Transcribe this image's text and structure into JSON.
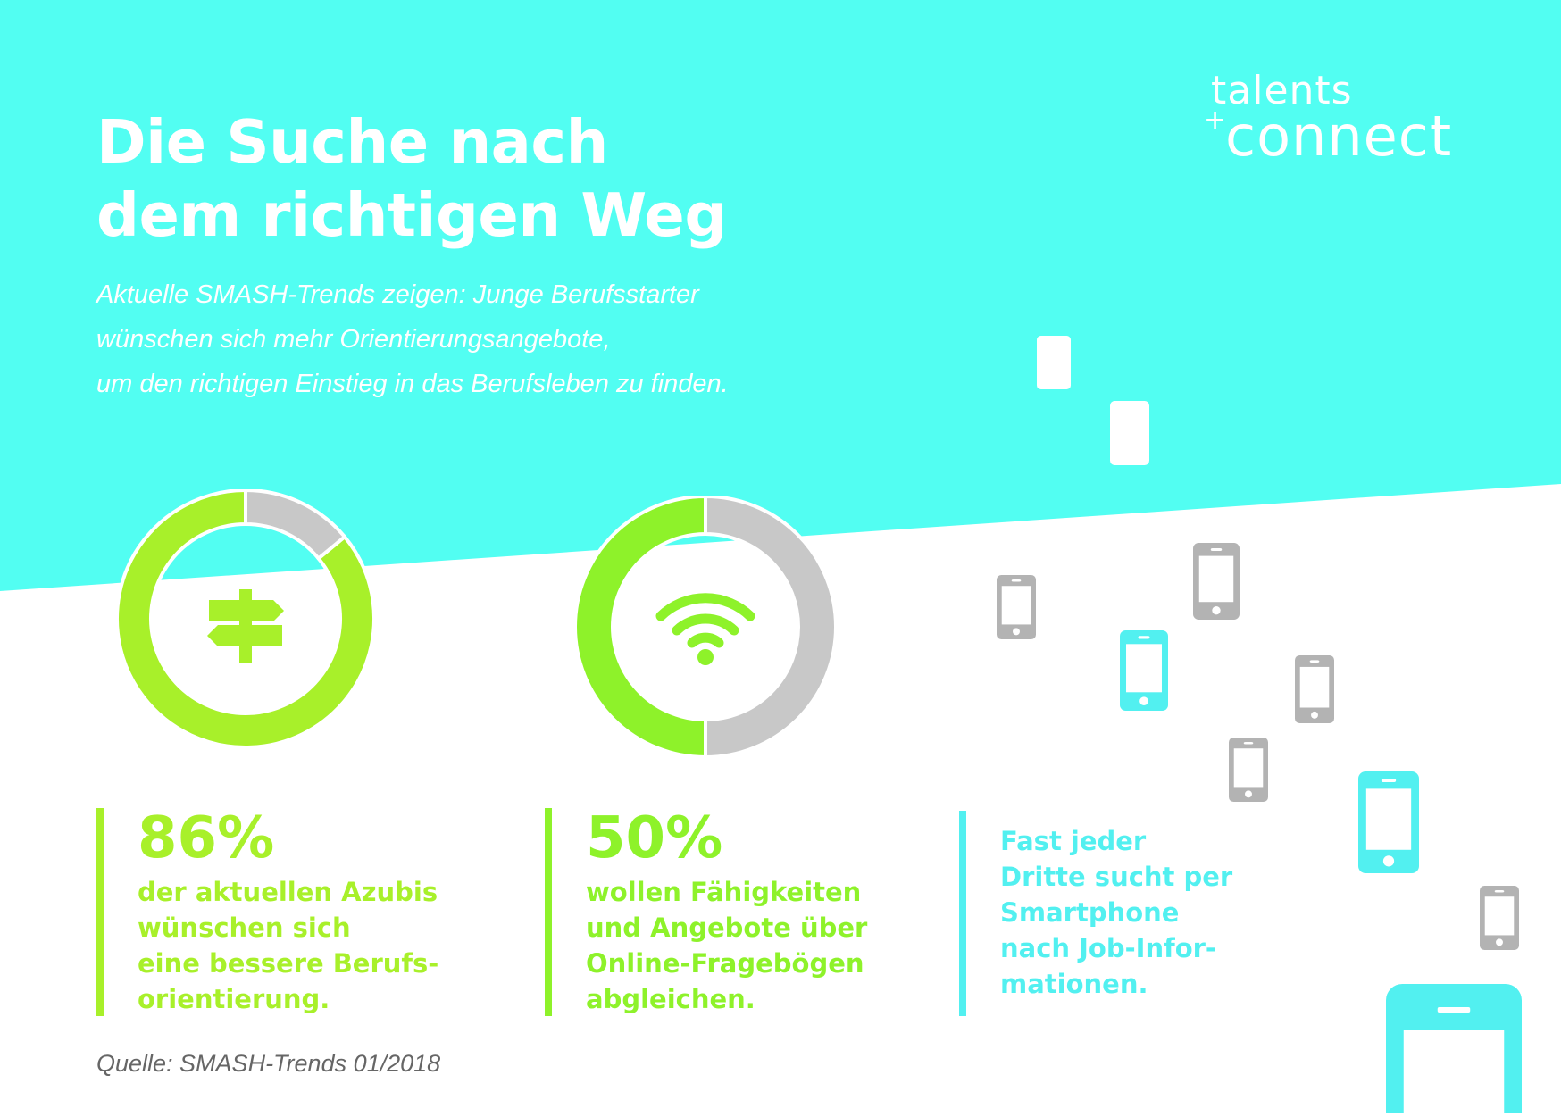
{
  "header": {
    "title_lines": [
      "Die Suche nach",
      "dem richtigen Weg"
    ],
    "subtitle_lines": [
      "Aktuelle SMASH-Trends zeigen: Junge Berufsstarter",
      "wünschen sich mehr Orientierungsangebote,",
      "um den richtigen Einstieg in das Berufsleben zu finden."
    ]
  },
  "logo": {
    "top": "talents",
    "plus": "+",
    "bottom": "connect"
  },
  "chart_data": [
    {
      "type": "pie",
      "variant": "donut",
      "values": [
        86,
        14
      ],
      "colors": [
        "#a8f02a",
        "#c8c8c8"
      ],
      "icon": "signpost-icon",
      "value_label": "86%",
      "text_lines": [
        "der aktuellen Azubis",
        "wünschen sich",
        "eine bessere Berufs-",
        "orientierung."
      ]
    },
    {
      "type": "pie",
      "variant": "donut",
      "values": [
        50,
        50
      ],
      "colors": [
        "#8ef22a",
        "#c8c8c8"
      ],
      "icon": "wifi-icon",
      "value_label": "50%",
      "text_lines": [
        "wollen Fähigkeiten",
        "und Angebote über",
        "Online-Fragebögen",
        "abgleichen."
      ]
    }
  ],
  "fact": {
    "text_lines": [
      "Fast jeder",
      "Dritte sucht per",
      "Smartphone",
      "nach Job-Infor-",
      "mationen."
    ]
  },
  "source": "Quelle: SMASH-Trends 01/2018",
  "colors": {
    "cyan": "#52fef2",
    "green": "#a8f02a",
    "green_alt": "#8ef22a",
    "grey": "#c8c8c8",
    "phone_grey": "#b3b3b3",
    "phone_cyan": "#52f0f0",
    "source_text": "#666666"
  },
  "phones": {
    "icon": "smartphone-icon",
    "items": [
      {
        "color": "white"
      },
      {
        "color": "white"
      },
      {
        "color": "grey"
      },
      {
        "color": "grey"
      },
      {
        "color": "cyan"
      },
      {
        "color": "grey"
      },
      {
        "color": "grey"
      },
      {
        "color": "cyan"
      },
      {
        "color": "grey"
      },
      {
        "color": "cyan"
      }
    ]
  }
}
